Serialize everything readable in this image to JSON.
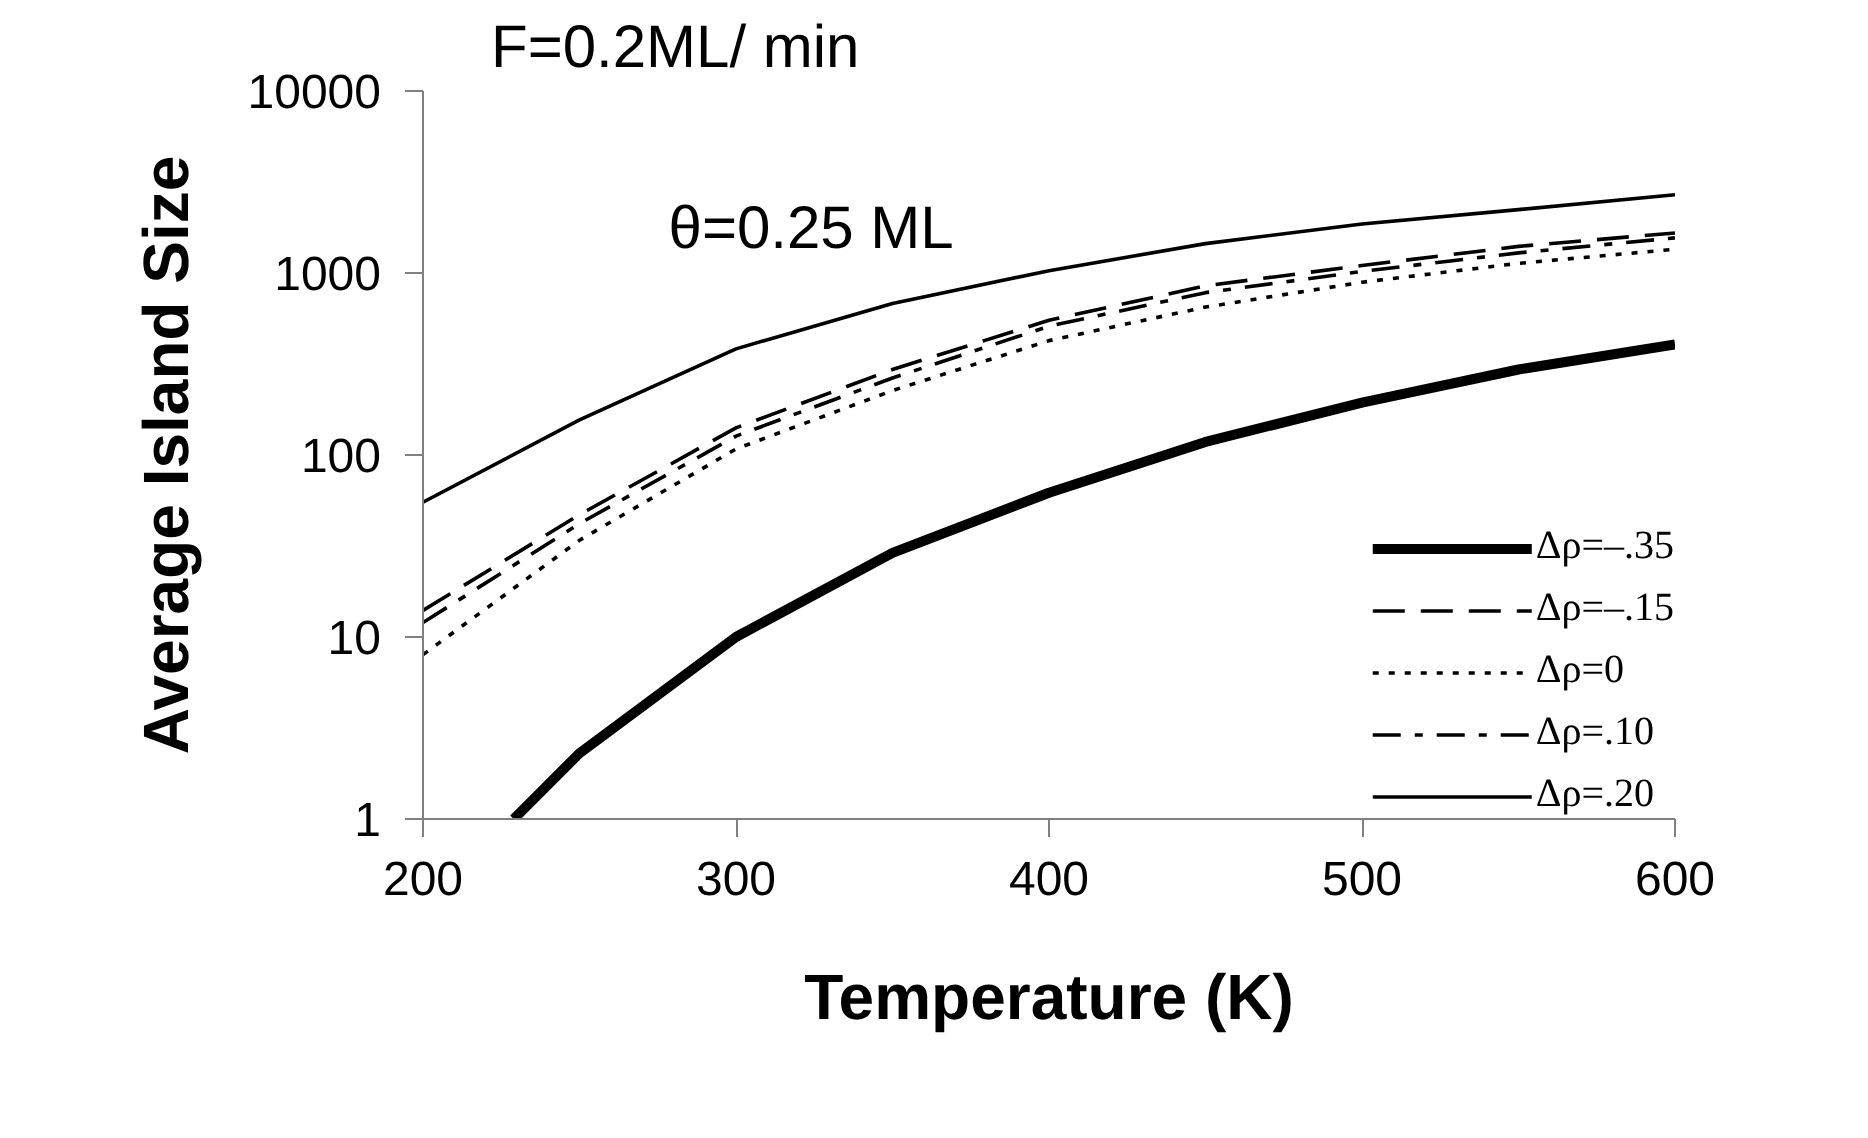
{
  "chart_data": {
    "type": "line",
    "title": "F=0.2ML/ min",
    "subtitle": "θ=0.25 ML",
    "xlabel": "Temperature (K)",
    "ylabel": "Average Island Size",
    "x": [
      200,
      250,
      300,
      350,
      400,
      450,
      500,
      550,
      600
    ],
    "series": [
      {
        "name": "Δρ=–.35",
        "color": "#000000",
        "line_style": "solid",
        "x": [
          229,
          250,
          300,
          350,
          400,
          450,
          500,
          550,
          600
        ],
        "values": [
          1,
          2.3,
          10,
          29,
          62,
          118,
          194,
          295,
          405
        ]
      },
      {
        "name": "Δρ=–.15",
        "color": "#000000",
        "line_style": "dashed",
        "values": [
          14,
          47,
          141,
          295,
          550,
          850,
          1100,
          1400,
          1660
        ]
      },
      {
        "name": "Δρ=0",
        "color": "#000000",
        "line_style": "dotted",
        "values": [
          8,
          34,
          108,
          226,
          425,
          650,
          890,
          1130,
          1350
        ]
      },
      {
        "name": "Δρ=.10",
        "color": "#000000",
        "line_style": "dashdot",
        "values": [
          12,
          42,
          127,
          265,
          510,
          780,
          1020,
          1290,
          1560
        ]
      },
      {
        "name": "Δρ=.20",
        "color": "#000000",
        "line_style": "solid",
        "values": [
          55,
          156,
          383,
          680,
          1030,
          1450,
          1860,
          2230,
          2690
        ]
      }
    ],
    "log": "y",
    "xlim": [
      200,
      600
    ],
    "ylim": [
      1,
      10000
    ],
    "xticks": [
      200,
      300,
      400,
      500,
      600
    ],
    "yticks": [
      1,
      10,
      100,
      1000,
      10000
    ],
    "grid": false,
    "legend": "bottom right"
  }
}
